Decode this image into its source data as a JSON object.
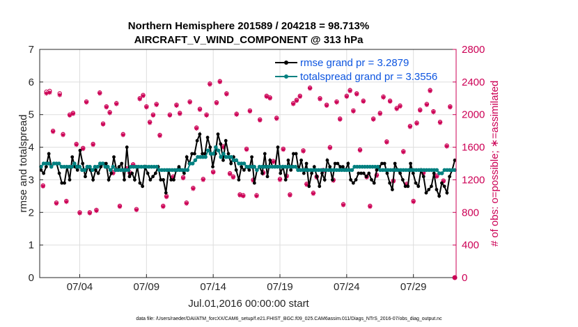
{
  "chart_data": {
    "type": "line",
    "title_line1": "Northern Hemisphere 201589 / 204218 = 98.713%",
    "title_line2": "AIRCRAFT_V_WIND_COMPONENT @ 313 hPa",
    "xlabel": "Jul.01,2016 00:00:00 start",
    "ylabel": "rmse and totalspread",
    "ylabel_right": "# of obs: o=possible; ∗=assimilated",
    "xlim": [
      1,
      32.2
    ],
    "ylim": [
      0,
      7
    ],
    "ylim_right": [
      0,
      2800
    ],
    "x_ticks": [
      4,
      9,
      14,
      19,
      24,
      29
    ],
    "x_tick_labels": [
      "07/04",
      "07/09",
      "07/14",
      "07/19",
      "07/24",
      "07/29"
    ],
    "y_ticks": [
      "0",
      "1",
      "2",
      "3",
      "4",
      "5",
      "6",
      "7"
    ],
    "y_ticks_right": [
      "0",
      "400",
      "800",
      "1200",
      "1600",
      "2000",
      "2400",
      "2800"
    ],
    "grid": true,
    "series": [
      {
        "name": "rmse grand pr = 3.2879",
        "color": "#000000",
        "values": [
          3.3,
          3.2,
          3.4,
          3.8,
          3.4,
          3.5,
          3.5,
          3.2,
          2.9,
          2.9,
          3.4,
          3.0,
          3.7,
          3.4,
          3.3,
          3.9,
          3.5,
          3.1,
          3.4,
          3.3,
          3.0,
          3.3,
          3.2,
          3.4,
          3.5,
          3.5,
          3.0,
          3.2,
          3.7,
          3.3,
          3.4,
          3.5,
          3.0,
          4.0,
          3.1,
          3.2,
          3.0,
          3.4,
          2.9,
          2.8,
          3.4,
          3.2,
          3.0,
          3.1,
          3.2,
          3.4,
          3.0,
          3.0,
          2.6,
          3.3,
          3.0,
          3.0,
          3.3,
          3.4,
          3.3,
          3.2,
          3.7,
          3.5,
          3.8,
          3.8,
          4.2,
          4.4,
          3.8,
          3.8,
          4.3,
          4.0,
          3.4,
          3.8,
          4.4,
          4.1,
          3.6,
          4.2,
          3.8,
          3.5,
          3.7,
          3.3,
          3.0,
          3.4,
          3.3,
          3.4,
          3.3,
          3.7,
          2.9,
          3.3,
          3.4,
          3.2,
          3.8,
          3.1,
          3.6,
          3.4,
          3.4,
          4.0,
          3.2,
          3.4,
          3.0,
          3.6,
          3.3,
          3.8,
          3.8,
          3.3,
          3.6,
          3.2,
          3.5,
          2.8,
          3.2,
          3.4,
          3.1,
          2.8,
          3.2,
          3.0,
          3.6,
          3.4,
          3.0,
          3.5,
          3.5,
          3.4,
          3.4,
          3.3,
          3.5,
          3.0,
          2.9,
          3.0,
          3.2,
          3.2,
          3.2,
          3.1,
          3.2,
          3.0,
          2.9,
          3.3,
          3.4,
          3.5,
          3.5,
          3.2,
          2.9,
          2.7,
          3.5,
          3.3,
          3.2,
          3.0,
          2.8,
          2.8,
          3.5,
          3.2,
          2.9,
          2.8,
          3.3,
          3.1,
          2.6,
          2.7,
          2.8,
          3.2,
          2.7,
          2.5,
          2.9,
          2.8,
          2.6,
          3.1,
          3.3,
          3.6
        ]
      },
      {
        "name": "totalspread grand pr = 3.3556",
        "color": "#008080",
        "values": [
          3.4,
          3.5,
          3.5,
          3.5,
          3.4,
          3.5,
          3.5,
          3.5,
          3.4,
          3.4,
          3.4,
          3.4,
          3.4,
          3.5,
          3.4,
          3.4,
          3.3,
          3.3,
          3.4,
          3.4,
          3.3,
          3.4,
          3.4,
          3.5,
          3.5,
          3.4,
          3.4,
          3.3,
          3.4,
          3.3,
          3.3,
          3.3,
          3.3,
          3.3,
          3.3,
          3.4,
          3.4,
          3.4,
          3.4,
          3.4,
          3.4,
          3.4,
          3.4,
          3.4,
          3.4,
          3.4,
          3.3,
          3.3,
          3.3,
          3.3,
          3.3,
          3.3,
          3.3,
          3.3,
          3.3,
          3.3,
          3.3,
          3.3,
          3.5,
          3.5,
          3.6,
          3.7,
          3.7,
          3.7,
          3.7,
          3.9,
          3.8,
          3.8,
          4.0,
          3.9,
          3.7,
          3.8,
          3.7,
          3.7,
          3.7,
          3.6,
          3.6,
          3.5,
          3.5,
          3.5,
          3.4,
          3.4,
          3.4,
          3.4,
          3.3,
          3.4,
          3.4,
          3.4,
          3.4,
          3.4,
          3.4,
          3.4,
          3.4,
          3.4,
          3.4,
          3.4,
          3.4,
          3.4,
          3.4,
          3.4,
          3.3,
          3.3,
          3.3,
          3.3,
          3.3,
          3.3,
          3.3,
          3.3,
          3.3,
          3.3,
          3.3,
          3.3,
          3.3,
          3.3,
          3.3,
          3.3,
          3.3,
          3.3,
          3.3,
          3.3,
          3.3,
          3.3,
          3.4,
          3.4,
          3.4,
          3.4,
          3.4,
          3.4,
          3.4,
          3.4,
          3.4,
          3.4,
          3.3,
          3.3,
          3.3,
          3.3,
          3.3,
          3.3,
          3.3,
          3.3,
          3.3,
          3.3,
          3.3,
          3.3,
          3.3,
          3.3,
          3.3,
          3.3,
          3.3,
          3.3,
          3.3,
          3.3,
          3.3,
          3.3,
          3.3,
          3.2,
          3.2,
          3.3,
          3.3,
          3.3,
          3.3,
          3.3
        ]
      }
    ],
    "obs_counts_right_axis": {
      "possible": [
        1130,
        2280,
        2290,
        1800,
        920,
        2260,
        1760,
        940,
        2000,
        2020,
        1640,
        800,
        1590,
        2160,
        800,
        1640,
        830,
        2270,
        1890,
        2100,
        2030,
        1290,
        2140,
        880,
        1760,
        1340,
        1290,
        1390,
        840,
        2200,
        2240,
        2100,
        1910,
        2000,
        2130,
        1750,
        880,
        1000,
        2000,
        1240,
        2120,
        2020,
        1230,
        920,
        2160,
        1100,
        1840,
        2070,
        1210,
        2000,
        2380,
        1300,
        2150,
        2410,
        1610,
        2260,
        1280,
        1240,
        2010,
        1020,
        1010,
        1580,
        2050,
        1200,
        1010,
        1940,
        1290,
        2230,
        2210,
        1430,
        1960,
        1210,
        1580,
        1250,
        1020,
        2140,
        2180,
        2230,
        1560,
        1150,
        2330,
        1040,
        1240,
        2200,
        1320,
        2120,
        1600,
        1200,
        2160,
        1950,
        900,
        2230,
        2300,
        2050,
        2260,
        1570,
        2170,
        1240,
        880,
        1950,
        1260,
        2020,
        2220,
        1670,
        2170,
        1190,
        2080,
        2110,
        1550,
        1150,
        1860,
        940,
        1900,
        2060,
        1290,
        2130,
        2300,
        2040,
        1250,
        1910,
        1190,
        1620,
        2100
      ],
      "assimilated": [
        1120,
        2260,
        2270,
        1790,
        910,
        2240,
        1750,
        930,
        1990,
        2010,
        1630,
        790,
        1580,
        2150,
        790,
        1630,
        820,
        2260,
        1880,
        2090,
        2020,
        1280,
        2130,
        870,
        1750,
        1330,
        1280,
        1380,
        830,
        2190,
        2230,
        2090,
        1900,
        1990,
        2120,
        1740,
        870,
        990,
        1990,
        1230,
        2110,
        2010,
        1220,
        910,
        2150,
        1090,
        1830,
        2060,
        1200,
        1990,
        2370,
        1290,
        2140,
        2400,
        1600,
        2250,
        1270,
        1230,
        2000,
        1010,
        1000,
        1570,
        2040,
        1190,
        1000,
        1930,
        1280,
        2220,
        2200,
        1420,
        1950,
        1200,
        1570,
        1240,
        1010,
        2130,
        2170,
        2220,
        1550,
        1140,
        2320,
        1030,
        1230,
        2190,
        1310,
        2110,
        1590,
        1190,
        2150,
        1940,
        890,
        2220,
        2290,
        2040,
        2250,
        1560,
        2160,
        1230,
        870,
        1940,
        1250,
        2010,
        2210,
        1660,
        2160,
        1180,
        2070,
        2100,
        1540,
        1140,
        1850,
        930,
        1890,
        2050,
        1280,
        2120,
        2290,
        2030,
        1240,
        1900,
        1180,
        1610,
        2090
      ]
    },
    "legend_position": "top-right"
  },
  "footnote": "data file: /Users/raeder/DAI/ATM_forcXX/CAM6_setup/f.e21.FHIST_BGC.f09_025.CAM6assim.011/Diags_NTrS_2016-07/obs_diag_output.nc",
  "colors": {
    "rmse": "#000000",
    "spread": "#008080",
    "obs": "#cc0055",
    "legend_text": "#0d55e0",
    "grid": "#dddddd"
  }
}
